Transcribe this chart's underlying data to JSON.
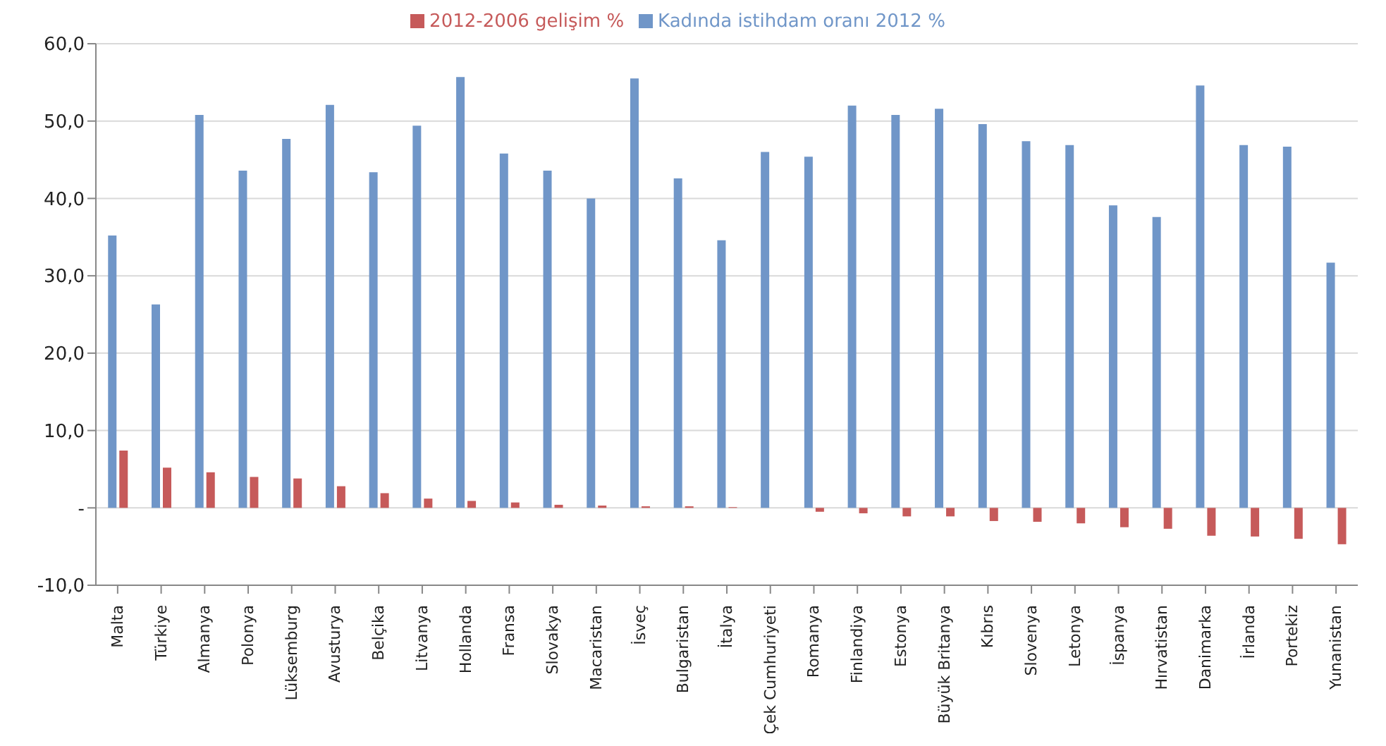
{
  "chart_data": {
    "type": "bar",
    "categories": [
      "Malta",
      "Türkiye",
      "Almanya",
      "Polonya",
      "Lüksemburg",
      "Avusturya",
      "Belçika",
      "Litvanya",
      "Hollanda",
      "Fransa",
      "Slovakya",
      "Macaristan",
      "İsveç",
      "Bulgaristan",
      "İtalya",
      "Çek Cumhuriyeti",
      "Romanya",
      "Finlandiya",
      "Estonya",
      "Büyük Britanya",
      "Kıbrıs",
      "Slovenya",
      "Letonya",
      "İspanya",
      "Hırvatistan",
      "Danimarka",
      "İrlanda",
      "Portekiz",
      "Yunanistan"
    ],
    "series": [
      {
        "name": "Kadında istihdam oranı 2012 %",
        "color": "#7096c8",
        "values": [
          35.2,
          26.3,
          50.8,
          43.6,
          47.7,
          52.1,
          43.4,
          49.4,
          55.7,
          45.8,
          43.6,
          40.0,
          55.5,
          42.6,
          34.6,
          46.0,
          45.4,
          52.0,
          50.8,
          51.6,
          49.6,
          47.4,
          46.9,
          39.1,
          37.6,
          54.6,
          46.9,
          46.7,
          31.7
        ]
      },
      {
        "name": "2012-2006 gelişim %",
        "color": "#c65a5a",
        "values": [
          7.4,
          5.2,
          4.6,
          4.0,
          3.8,
          2.8,
          1.9,
          1.2,
          0.9,
          0.7,
          0.4,
          0.3,
          0.2,
          0.2,
          0.1,
          0.0,
          -0.5,
          -0.7,
          -1.1,
          -1.1,
          -1.7,
          -1.8,
          -2.0,
          -2.5,
          -2.7,
          -3.6,
          -3.7,
          -4.0,
          -4.7
        ]
      }
    ],
    "ylim": [
      -10,
      60
    ],
    "yticks": [
      {
        "value": -10,
        "label": "-10,0"
      },
      {
        "value": 0,
        "label": "-"
      },
      {
        "value": 10,
        "label": "10,0"
      },
      {
        "value": 20,
        "label": "20,0"
      },
      {
        "value": 30,
        "label": "30,0"
      },
      {
        "value": 40,
        "label": "40,0"
      },
      {
        "value": 50,
        "label": "50,0"
      },
      {
        "value": 60,
        "label": "60,0"
      }
    ],
    "grid": "y",
    "legend": "top"
  }
}
